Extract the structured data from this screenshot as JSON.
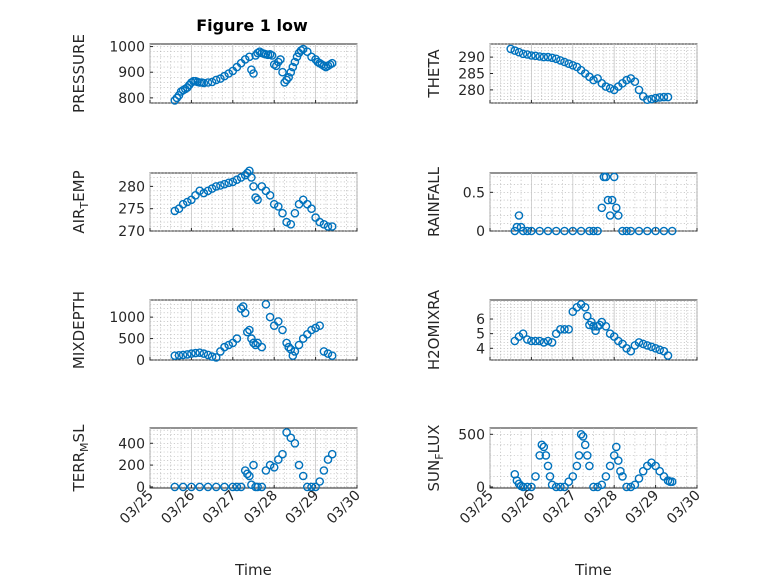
{
  "chart_data": {
    "title": "Figure 1 low",
    "marker_color": "#0072BD",
    "xlabel": "Time",
    "xticks": [
      "03/25",
      "03/26",
      "03/27",
      "03/28",
      "03/29",
      "03/30"
    ],
    "x_range": [
      0,
      5
    ],
    "panels": [
      {
        "ylabel": "PRESSURE",
        "ylim": [
          780,
          1010
        ],
        "yticks": [
          800,
          900,
          1000
        ],
        "x": [
          0.6,
          0.65,
          0.7,
          0.75,
          0.8,
          0.85,
          0.9,
          0.95,
          1.0,
          1.05,
          1.1,
          1.15,
          1.2,
          1.25,
          1.3,
          1.4,
          1.5,
          1.6,
          1.7,
          1.8,
          1.9,
          2.0,
          2.1,
          2.2,
          2.3,
          2.4,
          2.45,
          2.5,
          2.55,
          2.6,
          2.65,
          2.7,
          2.75,
          2.8,
          2.85,
          2.9,
          2.95,
          3.0,
          3.05,
          3.1,
          3.15,
          3.2,
          3.25,
          3.3,
          3.35,
          3.4,
          3.45,
          3.5,
          3.55,
          3.6,
          3.65,
          3.7,
          3.8,
          3.9,
          4.0,
          4.05,
          4.1,
          4.15,
          4.2,
          4.25,
          4.3,
          4.35,
          4.4
        ],
        "y": [
          790,
          800,
          810,
          825,
          830,
          835,
          840,
          850,
          860,
          865,
          865,
          862,
          860,
          860,
          858,
          860,
          862,
          870,
          875,
          885,
          895,
          905,
          920,
          935,
          950,
          960,
          910,
          895,
          965,
          975,
          980,
          975,
          972,
          970,
          968,
          970,
          965,
          930,
          925,
          940,
          950,
          900,
          860,
          870,
          880,
          900,
          920,
          940,
          960,
          975,
          985,
          990,
          980,
          960,
          950,
          940,
          935,
          930,
          925,
          920,
          925,
          930,
          935
        ]
      },
      {
        "ylabel": "THETA",
        "ylim": [
          276,
          294
        ],
        "yticks": [
          280,
          285,
          290
        ],
        "x": [
          0.5,
          0.6,
          0.7,
          0.8,
          0.9,
          1.0,
          1.1,
          1.2,
          1.3,
          1.4,
          1.5,
          1.6,
          1.7,
          1.8,
          1.9,
          2.0,
          2.1,
          2.2,
          2.3,
          2.4,
          2.5,
          2.6,
          2.7,
          2.8,
          2.9,
          3.0,
          3.1,
          3.2,
          3.3,
          3.4,
          3.5,
          3.6,
          3.7,
          3.8,
          3.9,
          4.0,
          4.1,
          4.2,
          4.3
        ],
        "y": [
          292.5,
          292,
          291.5,
          291,
          290.8,
          290.5,
          290.4,
          290.2,
          290,
          290,
          289.8,
          289.5,
          289,
          288.5,
          288,
          287.5,
          287,
          286,
          285,
          284,
          283,
          283.5,
          282,
          281,
          280.5,
          280,
          281,
          282,
          283,
          283.5,
          282.5,
          280,
          278,
          277,
          277.2,
          277.5,
          277.7,
          277.8,
          277.8
        ]
      },
      {
        "ylabel": "AIR_TEMP",
        "ylim": [
          270,
          283
        ],
        "yticks": [
          270,
          275,
          280
        ],
        "x": [
          0.6,
          0.7,
          0.8,
          0.9,
          1.0,
          1.1,
          1.2,
          1.3,
          1.4,
          1.5,
          1.6,
          1.7,
          1.8,
          1.9,
          2.0,
          2.1,
          2.2,
          2.3,
          2.35,
          2.4,
          2.45,
          2.5,
          2.55,
          2.6,
          2.7,
          2.8,
          2.9,
          3.0,
          3.1,
          3.2,
          3.3,
          3.4,
          3.5,
          3.6,
          3.7,
          3.8,
          3.9,
          4.0,
          4.1,
          4.2,
          4.3,
          4.4
        ],
        "y": [
          274.5,
          275,
          276,
          276.5,
          277,
          278,
          279,
          278.5,
          279,
          279.5,
          280,
          280.2,
          280.5,
          280.8,
          281,
          281.5,
          282,
          282.5,
          283,
          283.5,
          282,
          280,
          277.5,
          277,
          280,
          279,
          278,
          276,
          275.5,
          274,
          272,
          271.5,
          274,
          276,
          277,
          276,
          275,
          273,
          272,
          271.5,
          271,
          271
        ]
      },
      {
        "ylabel": "RAINFALL",
        "ylim": [
          0,
          0.75
        ],
        "yticks": [
          0,
          0.5
        ],
        "x": [
          0.6,
          0.65,
          0.7,
          0.75,
          0.8,
          0.9,
          1.0,
          1.2,
          1.4,
          1.6,
          1.8,
          2.0,
          2.2,
          2.4,
          2.5,
          2.6,
          2.7,
          2.75,
          2.8,
          2.85,
          2.9,
          2.95,
          3.0,
          3.05,
          3.1,
          3.2,
          3.3,
          3.4,
          3.6,
          3.8,
          4.0,
          4.2,
          4.4
        ],
        "y": [
          0,
          0.05,
          0.2,
          0.05,
          0,
          0,
          0,
          0,
          0,
          0,
          0,
          0,
          0,
          0,
          0,
          0,
          0.3,
          0.7,
          0.7,
          0.4,
          0.2,
          0.4,
          0.7,
          0.3,
          0.2,
          0,
          0,
          0,
          0,
          0,
          0,
          0,
          0
        ]
      },
      {
        "ylabel": "MIXDEPTH",
        "ylim": [
          0,
          1400
        ],
        "yticks": [
          0,
          500,
          1000
        ],
        "x": [
          0.6,
          0.7,
          0.8,
          0.9,
          1.0,
          1.1,
          1.2,
          1.3,
          1.4,
          1.5,
          1.6,
          1.7,
          1.8,
          1.9,
          2.0,
          2.1,
          2.2,
          2.25,
          2.3,
          2.35,
          2.4,
          2.45,
          2.5,
          2.55,
          2.6,
          2.7,
          2.8,
          2.9,
          3.0,
          3.1,
          3.2,
          3.3,
          3.35,
          3.4,
          3.45,
          3.5,
          3.6,
          3.7,
          3.8,
          3.9,
          4.0,
          4.1,
          4.2,
          4.3,
          4.4
        ],
        "y": [
          100,
          110,
          120,
          130,
          150,
          160,
          170,
          150,
          120,
          80,
          60,
          200,
          300,
          350,
          400,
          500,
          1200,
          1250,
          1100,
          650,
          700,
          500,
          400,
          350,
          400,
          300,
          1300,
          1000,
          800,
          900,
          700,
          400,
          300,
          250,
          100,
          200,
          350,
          500,
          600,
          700,
          750,
          800,
          200,
          150,
          100
        ]
      },
      {
        "ylabel": "H2OMIXRA",
        "ylim": [
          3.2,
          7.3
        ],
        "yticks": [
          4,
          5,
          6
        ],
        "x": [
          0.6,
          0.7,
          0.8,
          0.9,
          1.0,
          1.1,
          1.2,
          1.3,
          1.4,
          1.5,
          1.6,
          1.7,
          1.8,
          1.9,
          2.0,
          2.1,
          2.2,
          2.3,
          2.35,
          2.4,
          2.45,
          2.5,
          2.55,
          2.6,
          2.65,
          2.7,
          2.8,
          2.9,
          3.0,
          3.1,
          3.2,
          3.3,
          3.4,
          3.5,
          3.6,
          3.7,
          3.8,
          3.9,
          4.0,
          4.1,
          4.2,
          4.3
        ],
        "y": [
          4.5,
          4.8,
          5.0,
          4.6,
          4.5,
          4.5,
          4.5,
          4.4,
          4.5,
          4.4,
          5.0,
          5.3,
          5.3,
          5.3,
          6.5,
          6.8,
          7.0,
          6.8,
          6.2,
          5.6,
          5.8,
          5.5,
          5.2,
          5.5,
          5.6,
          5.8,
          5.5,
          5.0,
          4.8,
          4.5,
          4.3,
          4.0,
          3.8,
          4.2,
          4.4,
          4.3,
          4.2,
          4.1,
          4.0,
          3.9,
          3.8,
          3.5
        ]
      },
      {
        "ylabel": "TERR_MSL",
        "ylim": [
          -10,
          540
        ],
        "yticks": [
          0,
          200,
          400
        ],
        "x": [
          0.6,
          0.8,
          1.0,
          1.2,
          1.4,
          1.6,
          1.8,
          2.0,
          2.1,
          2.2,
          2.3,
          2.35,
          2.4,
          2.45,
          2.5,
          2.55,
          2.6,
          2.7,
          2.8,
          2.9,
          3.0,
          3.1,
          3.2,
          3.3,
          3.4,
          3.5,
          3.6,
          3.7,
          3.8,
          3.9,
          4.0,
          4.1,
          4.2,
          4.3,
          4.4
        ],
        "y": [
          0,
          0,
          0,
          0,
          0,
          0,
          0,
          0,
          0,
          0,
          150,
          120,
          100,
          20,
          200,
          0,
          0,
          0,
          150,
          200,
          180,
          250,
          300,
          500,
          450,
          400,
          200,
          100,
          0,
          0,
          0,
          50,
          150,
          250,
          300
        ]
      },
      {
        "ylabel": "SUN_FLUX",
        "ylim": [
          -10,
          560
        ],
        "yticks": [
          0,
          500
        ],
        "x": [
          0.6,
          0.65,
          0.7,
          0.75,
          0.8,
          0.9,
          1.0,
          1.1,
          1.2,
          1.25,
          1.3,
          1.35,
          1.4,
          1.45,
          1.5,
          1.6,
          1.7,
          1.8,
          1.9,
          2.0,
          2.1,
          2.15,
          2.2,
          2.25,
          2.3,
          2.35,
          2.4,
          2.5,
          2.6,
          2.7,
          2.8,
          2.9,
          3.0,
          3.05,
          3.1,
          3.15,
          3.2,
          3.3,
          3.4,
          3.5,
          3.6,
          3.7,
          3.8,
          3.9,
          4.0,
          4.1,
          4.2,
          4.3,
          4.35,
          4.4
        ],
        "y": [
          120,
          60,
          30,
          10,
          0,
          0,
          0,
          100,
          300,
          400,
          380,
          300,
          200,
          100,
          20,
          0,
          0,
          0,
          50,
          100,
          200,
          300,
          500,
          480,
          400,
          300,
          200,
          0,
          0,
          20,
          100,
          200,
          300,
          380,
          250,
          150,
          100,
          0,
          0,
          20,
          80,
          150,
          200,
          230,
          200,
          150,
          100,
          60,
          50,
          50
        ]
      }
    ]
  }
}
